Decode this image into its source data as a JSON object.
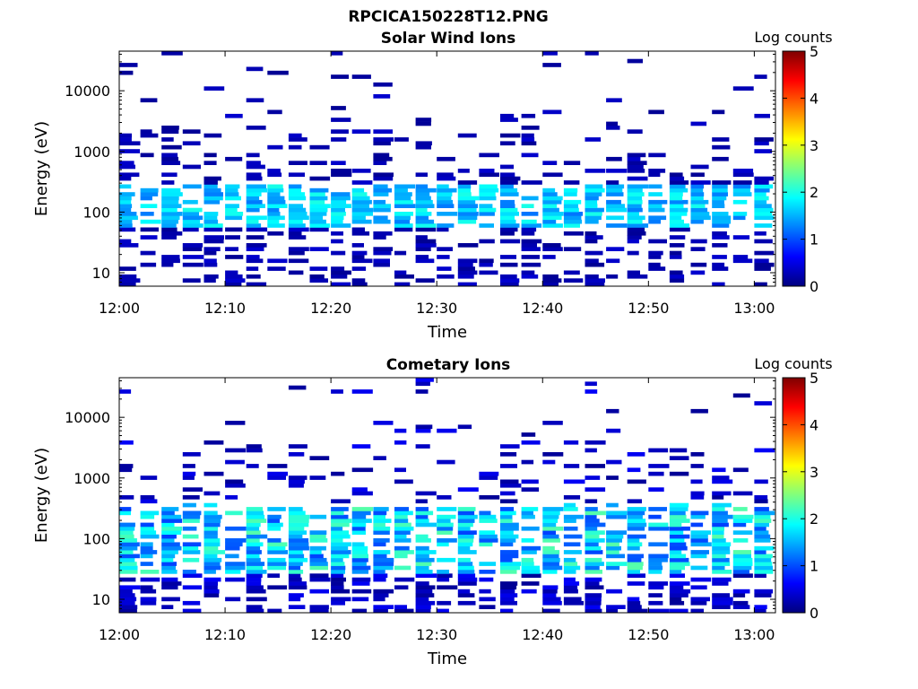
{
  "figure": {
    "title": "RPCICA150228T12.PNG"
  },
  "colorscale": {
    "stops": [
      "#00007f",
      "#0000ff",
      "#007fff",
      "#00ffff",
      "#7fff7f",
      "#ffff00",
      "#ff7f00",
      "#ff0000",
      "#7f0000"
    ]
  },
  "chart_data": [
    {
      "type": "heatmap",
      "title": "Solar Wind Ions",
      "xlabel": "Time",
      "ylabel": "Energy (eV)",
      "x_range_minutes": [
        0,
        62
      ],
      "x_ticks": [
        {
          "label": "12:00",
          "minute": 0
        },
        {
          "label": "12:10",
          "minute": 10
        },
        {
          "label": "12:20",
          "minute": 20
        },
        {
          "label": "12:30",
          "minute": 30
        },
        {
          "label": "12:40",
          "minute": 40
        },
        {
          "label": "12:50",
          "minute": 50
        },
        {
          "label": "13:00",
          "minute": 60
        }
      ],
      "y_scale": "log",
      "y_range_eV": [
        6,
        45000
      ],
      "y_ticks": [
        {
          "label": "10",
          "value": 10
        },
        {
          "label": "100",
          "value": 100
        },
        {
          "label": "1000",
          "value": 1000
        },
        {
          "label": "10000",
          "value": 10000
        }
      ],
      "colorbar": {
        "label": "Log counts",
        "min": 0,
        "max": 5,
        "ticks": [
          "0",
          "1",
          "2",
          "3",
          "4",
          "5"
        ]
      },
      "peak_energy_eV": 130,
      "peak_log_counts_approx": 2.0,
      "note_visible_structure": "vertical stripes of counts per energy sweep; strongest around 100-200 eV",
      "grid": false
    },
    {
      "type": "heatmap",
      "title": "Cometary Ions",
      "xlabel": "Time",
      "ylabel": "Energy (eV)",
      "x_range_minutes": [
        0,
        62
      ],
      "x_ticks": [
        {
          "label": "12:00",
          "minute": 0
        },
        {
          "label": "12:10",
          "minute": 10
        },
        {
          "label": "12:20",
          "minute": 20
        },
        {
          "label": "12:30",
          "minute": 30
        },
        {
          "label": "12:40",
          "minute": 40
        },
        {
          "label": "12:50",
          "minute": 50
        },
        {
          "label": "13:00",
          "minute": 60
        }
      ],
      "y_scale": "log",
      "y_range_eV": [
        6,
        45000
      ],
      "y_ticks": [
        {
          "label": "10",
          "value": 10
        },
        {
          "label": "100",
          "value": 100
        },
        {
          "label": "1000",
          "value": 1000
        },
        {
          "label": "10000",
          "value": 10000
        }
      ],
      "colorbar": {
        "label": "Log counts",
        "min": 0,
        "max": 5,
        "ticks": [
          "0",
          "1",
          "2",
          "3",
          "4",
          "5"
        ]
      },
      "peak_energy_eV": 100,
      "peak_log_counts_approx": 2.3,
      "grid": false
    }
  ]
}
